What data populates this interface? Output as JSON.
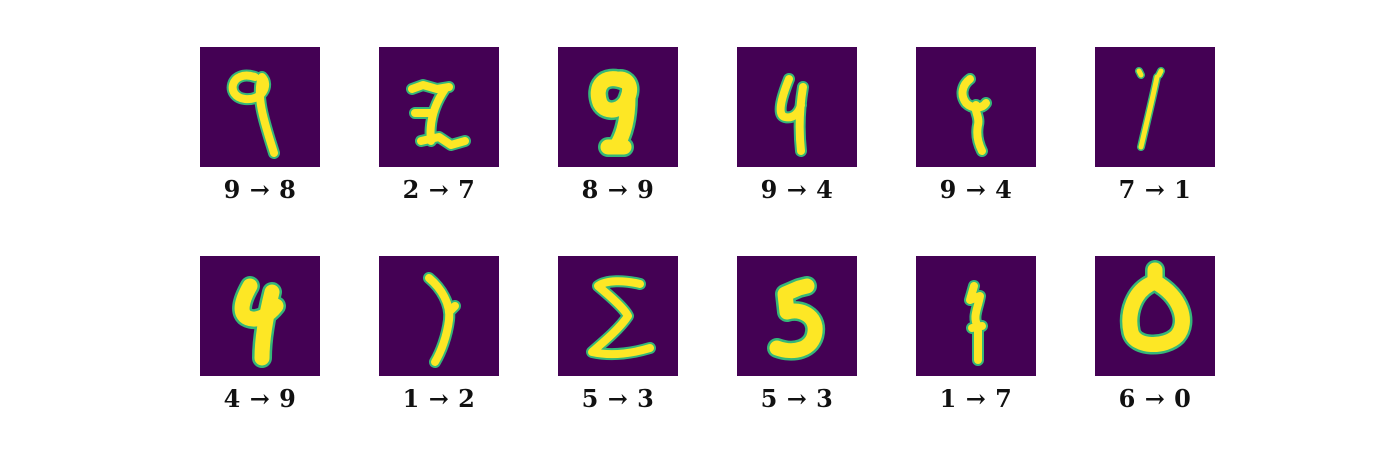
{
  "colors": {
    "background": "#440154",
    "stroke": "#fde725",
    "edge": "#35b779"
  },
  "arrow": "→",
  "samples": [
    {
      "true_label": "9",
      "predicted_label": "8"
    },
    {
      "true_label": "2",
      "predicted_label": "7"
    },
    {
      "true_label": "8",
      "predicted_label": "9"
    },
    {
      "true_label": "9",
      "predicted_label": "4"
    },
    {
      "true_label": "9",
      "predicted_label": "4"
    },
    {
      "true_label": "7",
      "predicted_label": "1"
    },
    {
      "true_label": "4",
      "predicted_label": "9"
    },
    {
      "true_label": "1",
      "predicted_label": "2"
    },
    {
      "true_label": "5",
      "predicted_label": "3"
    },
    {
      "true_label": "5",
      "predicted_label": "3"
    },
    {
      "true_label": "1",
      "predicted_label": "7"
    },
    {
      "true_label": "6",
      "predicted_label": "0"
    }
  ]
}
